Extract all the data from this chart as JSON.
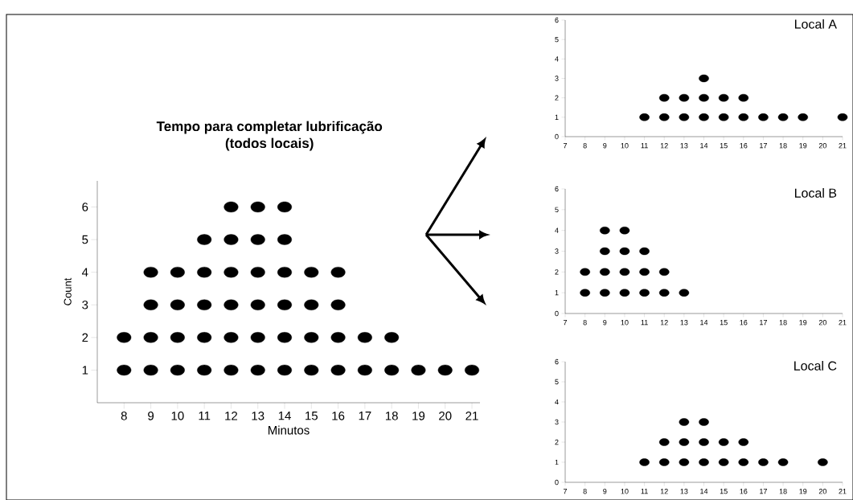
{
  "chart_data": [
    {
      "type": "scatter",
      "title": "Tempo para completar lubrificação\n(todos locais)",
      "xlabel": "Minutos",
      "ylabel": "Count",
      "color": "#000000",
      "x": [
        8,
        8,
        9,
        9,
        9,
        9,
        10,
        10,
        10,
        10,
        11,
        11,
        11,
        11,
        11,
        12,
        12,
        12,
        12,
        12,
        12,
        13,
        13,
        13,
        13,
        13,
        13,
        14,
        14,
        14,
        14,
        14,
        14,
        15,
        15,
        15,
        15,
        16,
        16,
        16,
        16,
        17,
        17,
        18,
        18,
        19,
        20,
        21
      ],
      "values": [
        1,
        2,
        1,
        2,
        3,
        4,
        1,
        2,
        3,
        4,
        1,
        2,
        3,
        4,
        5,
        1,
        2,
        3,
        4,
        5,
        6,
        1,
        2,
        3,
        4,
        5,
        6,
        1,
        2,
        3,
        4,
        5,
        6,
        1,
        2,
        3,
        4,
        1,
        2,
        3,
        4,
        1,
        2,
        1,
        2,
        1,
        1,
        1
      ],
      "xlim": [
        7,
        21.3
      ],
      "ylim": [
        0,
        6.8
      ],
      "xticks": [
        8,
        9,
        10,
        11,
        12,
        13,
        14,
        15,
        16,
        17,
        18,
        19,
        20,
        21
      ],
      "yticks": [
        1,
        2,
        3,
        4,
        5,
        6
      ]
    },
    {
      "type": "scatter",
      "title": "Local A",
      "color": "#000000",
      "x": [
        11,
        12,
        12,
        13,
        13,
        14,
        14,
        14,
        15,
        15,
        16,
        16,
        17,
        18,
        19,
        21
      ],
      "values": [
        1,
        1,
        2,
        1,
        2,
        1,
        2,
        3,
        1,
        2,
        1,
        2,
        1,
        1,
        1,
        1
      ],
      "xlim": [
        7,
        21
      ],
      "ylim": [
        0,
        6
      ],
      "xticks": [
        7,
        8,
        9,
        10,
        11,
        12,
        13,
        14,
        15,
        16,
        17,
        18,
        19,
        20,
        21
      ],
      "yticks": [
        0,
        1,
        2,
        3,
        4,
        5,
        6
      ]
    },
    {
      "type": "scatter",
      "title": "Local B",
      "color": "#000000",
      "x": [
        8,
        8,
        9,
        9,
        9,
        9,
        10,
        10,
        10,
        10,
        11,
        11,
        11,
        12,
        12,
        13
      ],
      "values": [
        1,
        2,
        1,
        2,
        3,
        4,
        1,
        2,
        3,
        4,
        1,
        2,
        3,
        1,
        2,
        1
      ],
      "xlim": [
        7,
        21
      ],
      "ylim": [
        0,
        6
      ],
      "xticks": [
        7,
        8,
        9,
        10,
        11,
        12,
        13,
        14,
        15,
        16,
        17,
        18,
        19,
        20,
        21
      ],
      "yticks": [
        0,
        1,
        2,
        3,
        4,
        5,
        6
      ]
    },
    {
      "type": "scatter",
      "title": "Local C",
      "color": "#000000",
      "x": [
        11,
        12,
        12,
        13,
        13,
        13,
        14,
        14,
        14,
        15,
        15,
        16,
        16,
        17,
        18,
        20
      ],
      "values": [
        1,
        1,
        2,
        1,
        2,
        3,
        1,
        2,
        3,
        1,
        2,
        1,
        2,
        1,
        1,
        1
      ],
      "xlim": [
        7,
        21
      ],
      "ylim": [
        0,
        6
      ],
      "xticks": [
        7,
        8,
        9,
        10,
        11,
        12,
        13,
        14,
        15,
        16,
        17,
        18,
        19,
        20,
        21
      ],
      "yticks": [
        0,
        1,
        2,
        3,
        4,
        5,
        6
      ]
    }
  ]
}
